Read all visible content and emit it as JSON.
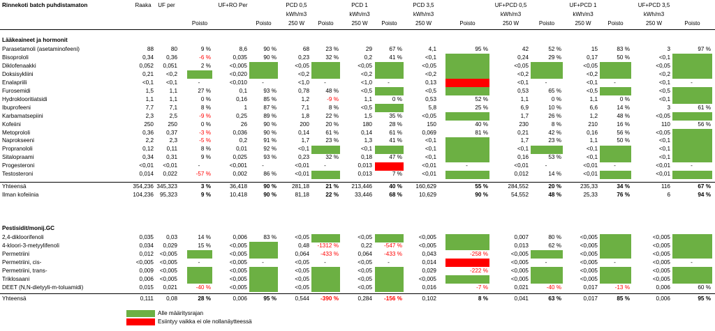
{
  "colors": {
    "below_limit": "#6cb043",
    "occurs": "#ff0000",
    "negative_text": "#ff0000"
  },
  "title": "Rinnekoti batch puhdistamaton",
  "columns": [
    {
      "key": "raaka",
      "lines": [
        "Raaka"
      ]
    },
    {
      "key": "uf",
      "lines": [
        "UF per"
      ]
    },
    {
      "key": "p_uf",
      "lines": [
        "",
        "",
        "Poisto"
      ]
    },
    {
      "key": "ufro",
      "lines": [
        "UF+RO Per"
      ]
    },
    {
      "key": "p_ufro",
      "lines": [
        "",
        "",
        "Poisto"
      ]
    },
    {
      "key": "pcd05",
      "lines": [
        "PCD 0,5",
        "kWh/m3",
        "250 W"
      ]
    },
    {
      "key": "p_pcd05",
      "lines": [
        "",
        "",
        "Poisto"
      ]
    },
    {
      "key": "pcd1",
      "lines": [
        "PCD 1",
        "kWh/m3",
        "250 W"
      ]
    },
    {
      "key": "p_pcd1",
      "lines": [
        "",
        "",
        "Poisto"
      ]
    },
    {
      "key": "pcd35",
      "lines": [
        "PCD 3,5",
        "kWh/m3",
        "250 W"
      ]
    },
    {
      "key": "p_pcd35",
      "lines": [
        "",
        "",
        "Poisto"
      ]
    },
    {
      "key": "ufpcd05",
      "lines": [
        "UF+PCD 0,5",
        "kWh/m3",
        "250 W"
      ]
    },
    {
      "key": "p_ufpcd05",
      "lines": [
        "",
        "",
        "Poisto"
      ]
    },
    {
      "key": "ufpcd1",
      "lines": [
        "UF+PCD 1",
        "kWh/m3",
        "250 W"
      ]
    },
    {
      "key": "p_ufpcd1",
      "lines": [
        "",
        "",
        "Poisto"
      ]
    },
    {
      "key": "ufpcd35",
      "lines": [
        "UF+PCD 3,5",
        "kWh/m3",
        "250 W"
      ]
    },
    {
      "key": "p_ufpcd35",
      "lines": [
        "",
        "",
        "Poisto"
      ]
    }
  ],
  "sections": [
    {
      "title": "Lääkeaineet ja hormonit",
      "rows": [
        {
          "name": "Parasetamoli (asetaminofeeni)",
          "cells": [
            "88",
            "80",
            "9 %",
            "8,6",
            "90 %",
            "68",
            "23 %",
            "29",
            "67 %",
            "4,1",
            "95 %",
            "42",
            "52 %",
            "15",
            "83 %",
            "3",
            "97 %"
          ]
        },
        {
          "name": "Bisoprololi",
          "cells": [
            "0,34",
            "0,36",
            "-6 %",
            "0,035",
            "90 %",
            "0,23",
            "32 %",
            "0,2",
            "41 %",
            "<0,1",
            "G",
            "0,24",
            "29 %",
            "0,17",
            "50 %",
            "<0,1",
            "G"
          ]
        },
        {
          "name": "Diklofenaakki",
          "cells": [
            "0,052",
            "0,051",
            "2 %",
            "<0,005",
            "G",
            "<0,05",
            "G",
            "<0,05",
            "G",
            "<0,05",
            "G",
            "<0,05",
            "G",
            "<0,05",
            "G",
            "<0,05",
            "G"
          ]
        },
        {
          "name": "Doksisykliini",
          "cells": [
            "0,21",
            "<0,2",
            "G",
            "<0,020",
            "G",
            "<0,2",
            "G",
            "<0,2",
            "G",
            "<0,2",
            "G",
            "<0,2",
            "G",
            "<0,2",
            "G",
            "<0,2",
            "G"
          ]
        },
        {
          "name": "Enalapriili",
          "cells": [
            "<0,1",
            "<0,1",
            "-",
            "<0,010",
            "-",
            "<1,0",
            "-",
            "<1,0",
            "-",
            "0,13",
            "R",
            "<0,1",
            "-",
            "<0,1",
            "-",
            "<0,1",
            "-"
          ]
        },
        {
          "name": "Furosemidi",
          "cells": [
            "1,5",
            "1,1",
            "27 %",
            "0,1",
            "93 %",
            "0,78",
            "48 %",
            "<0,5",
            "G",
            "<0,5",
            "G",
            "0,53",
            "65 %",
            "<0,5",
            "G",
            "<0,5",
            "G"
          ]
        },
        {
          "name": "Hydroklooritiatsidi",
          "cells": [
            "1,1",
            "1,1",
            "0 %",
            "0,16",
            "85 %",
            "1,2",
            "-9 %",
            "1,1",
            "0 %",
            "0,53",
            "52 %",
            "1,1",
            "0 %",
            "1,1",
            "0 %",
            "<0,1",
            "G"
          ]
        },
        {
          "name": "Ibuprofeeni",
          "cells": [
            "7,7",
            "7,1",
            "8 %",
            "1",
            "87 %",
            "7,1",
            "8 %",
            "<0,5",
            "G",
            "5,8",
            "25 %",
            "6,9",
            "10 %",
            "6,6",
            "14 %",
            "3",
            "61 %"
          ]
        },
        {
          "name": "Karbamatsepiini",
          "cells": [
            "2,3",
            "2,5",
            "-9 %",
            "0,25",
            "89 %",
            "1,8",
            "22 %",
            "1,5",
            "35 %",
            "<0,05",
            "G",
            "1,7",
            "26 %",
            "1,2",
            "48 %",
            "<0,05",
            "G"
          ]
        },
        {
          "name": "Kofeiini",
          "cells": [
            "250",
            "250",
            "0 %",
            "26",
            "90 %",
            "200",
            "20 %",
            "180",
            "28 %",
            "150",
            "40 %",
            "230",
            "8 %",
            "210",
            "16 %",
            "110",
            "56 %"
          ]
        },
        {
          "name": "Metoprololi",
          "cells": [
            "0,36",
            "0,37",
            "-3 %",
            "0,036",
            "90 %",
            "0,14",
            "61 %",
            "0,14",
            "61 %",
            "0,069",
            "81 %",
            "0,21",
            "42 %",
            "0,16",
            "56 %",
            "<0,05",
            "G"
          ]
        },
        {
          "name": "Naprokseeni",
          "cells": [
            "2,2",
            "2,3",
            "-5 %",
            "0,2",
            "91 %",
            "1,7",
            "23 %",
            "1,3",
            "41 %",
            "<0,1",
            "G",
            "1,7",
            "23 %",
            "1,1",
            "50 %",
            "<0,1",
            "G"
          ]
        },
        {
          "name": "Propranololi",
          "cells": [
            "0,12",
            "0,11",
            "8 %",
            "0,01",
            "92 %",
            "<0,1",
            "G",
            "<0,1",
            "G",
            "<0,1",
            "G",
            "<0,1",
            "G",
            "<0,1",
            "G",
            "<0,1",
            "G"
          ]
        },
        {
          "name": "Sitalopraami",
          "cells": [
            "0,34",
            "0,31",
            "9 %",
            "0,025",
            "93 %",
            "0,23",
            "32 %",
            "0,18",
            "47 %",
            "<0,1",
            "G",
            "0,16",
            "53 %",
            "<0,1",
            "G",
            "<0,1",
            "G"
          ]
        },
        {
          "name": "Progesteroni",
          "cells": [
            "<0,01",
            "<0,01",
            "-",
            "<0,001",
            "-",
            "<0,01",
            "-",
            "0,013",
            "R",
            "<0,01",
            "-",
            "<0,01",
            "-",
            "<0,01",
            "-",
            "<0,01",
            "-"
          ]
        },
        {
          "name": "Testosteroni",
          "cells": [
            "0,014",
            "0,022",
            "-57 %",
            "0,002",
            "86 %",
            "<0,01",
            "G",
            "0,013",
            "7 %",
            "<0,01",
            "G",
            "0,012",
            "14 %",
            "<0,01",
            "G",
            "<0,01",
            "G"
          ]
        }
      ],
      "totals": [
        {
          "name": "Yhteensä",
          "cells": [
            "354,236",
            "345,323",
            "3 %",
            "36,418",
            "90 %",
            "281,18",
            "21 %",
            "213,446",
            "40 %",
            "160,629",
            "55 %",
            "284,552",
            "20 %",
            "235,33",
            "34 %",
            "116",
            "67 %"
          ]
        },
        {
          "name": "Ilman kofeiinia",
          "cells": [
            "104,236",
            "95,323",
            "9 %",
            "10,418",
            "90 %",
            "81,18",
            "22 %",
            "33,446",
            "68 %",
            "10,629",
            "90 %",
            "54,552",
            "48 %",
            "25,33",
            "76 %",
            "6",
            "94 %"
          ]
        }
      ]
    },
    {
      "title": "Pestisidit/monij.GC",
      "rows": [
        {
          "name": "2,4-dikloorifenoli",
          "cells": [
            "0,035",
            "0,03",
            "14 %",
            "0,006",
            "83 %",
            "<0,05",
            "G",
            "<0,05",
            "G",
            "<0,005",
            "G",
            "0,007",
            "80 %",
            "<0,005",
            "G",
            "<0,005",
            "G"
          ]
        },
        {
          "name": "4-kloori-3-metyylifenoli",
          "cells": [
            "0,034",
            "0,029",
            "15 %",
            "<0,005",
            "G",
            "0,48",
            "-1312 %",
            "0,22",
            "-547 %",
            "<0,005",
            "G",
            "0,013",
            "62 %",
            "<0,005",
            "G",
            "<0,005",
            "G"
          ]
        },
        {
          "name": "Permetriini",
          "cells": [
            "0,012",
            "<0,005",
            "G",
            "<0,005",
            "G",
            "0,064",
            "-433 %",
            "0,064",
            "-433 %",
            "0,043",
            "-258 %",
            "<0,005",
            "G",
            "<0,005",
            "G",
            "<0,005",
            "G"
          ]
        },
        {
          "name": "Permetriini, cis-",
          "cells": [
            "<0,005",
            "<0,005",
            "-",
            "<0,005",
            "-",
            "<0,05",
            "-",
            "<0,05",
            "-",
            "0,014",
            "R",
            "<0,005",
            "-",
            "<0,005",
            "-",
            "<0,005",
            "-"
          ]
        },
        {
          "name": "Permetriini, trans-",
          "cells": [
            "0,009",
            "<0,005",
            "G",
            "<0,005",
            "G",
            "<0,05",
            "G",
            "<0,05",
            "G",
            "0,029",
            "-222 %",
            "<0,005",
            "G",
            "<0,005",
            "G",
            "<0,005",
            "G"
          ]
        },
        {
          "name": "Triklosaani",
          "cells": [
            "0,006",
            "<0,005",
            "G",
            "<0,005",
            "G",
            "<0,05",
            "G",
            "<0,05",
            "G",
            "<0,005",
            "G",
            "<0,005",
            "G",
            "<0,005",
            "G",
            "<0,005",
            "G"
          ]
        },
        {
          "name": "DEET (N,N-dietyyli-m-toluamidi)",
          "cells": [
            "0,015",
            "0,021",
            "-40 %",
            "<0,005",
            "G",
            "<0,05",
            "G",
            "<0,05",
            "G",
            "0,016",
            "-7 %",
            "0,021",
            "-40 %",
            "0,017",
            "-13 %",
            "0,006",
            "60 %"
          ]
        }
      ],
      "totals": [
        {
          "name": "Yhteensä",
          "cells": [
            "0,111",
            "0,08",
            "28 %",
            "0,006",
            "95 %",
            "0,544",
            "-390 %",
            "0,284",
            "-156 %",
            "0,102",
            "8 %",
            "0,041",
            "63 %",
            "0,017",
            "85 %",
            "0,006",
            "95 %"
          ]
        }
      ]
    }
  ],
  "legend": [
    {
      "color": "#6cb043",
      "label": "Alle määritysrajan"
    },
    {
      "color": "#ff0000",
      "label": "Esiintyy vaikka ei ole nollanäytteessä"
    }
  ]
}
